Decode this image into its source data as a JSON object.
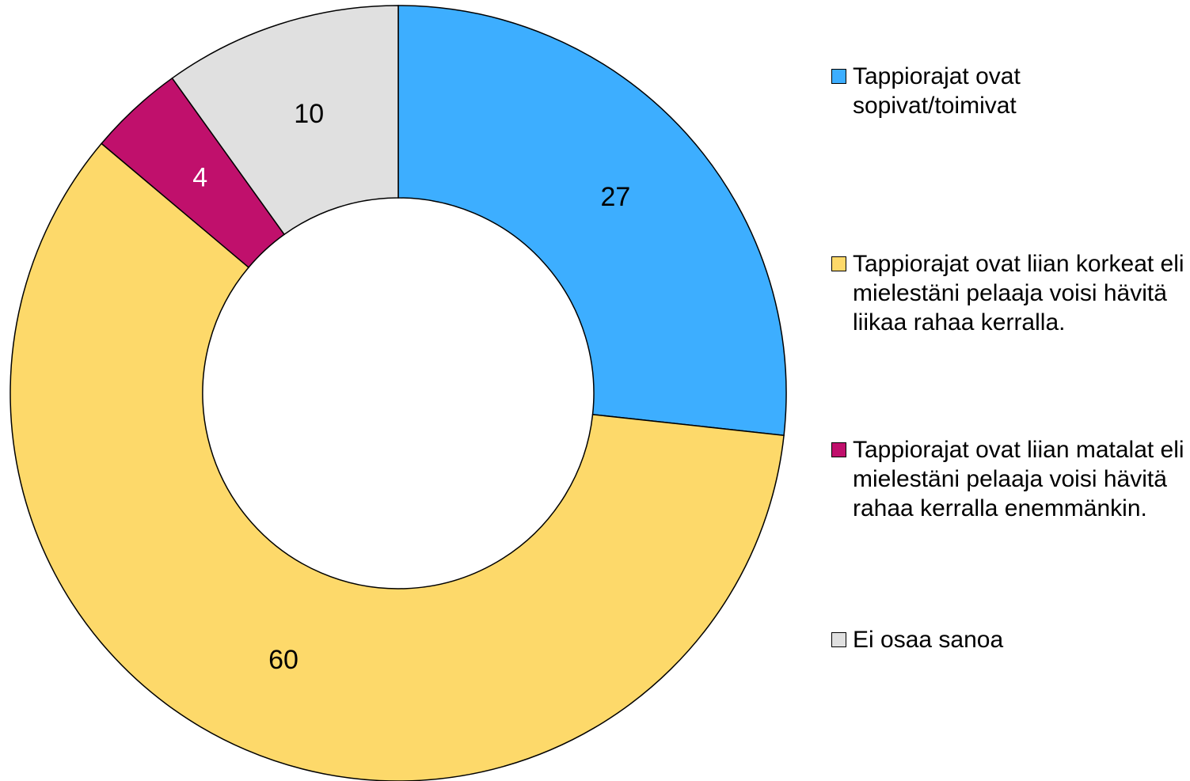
{
  "chart_data": {
    "type": "donut",
    "categories": [
      "Tappiorajat ovat sopivat/toimivat",
      "Tappiorajat ovat liian korkeat eli mielestäni pelaaja voisi hävitä liikaa rahaa kerralla.",
      "Tappiorajat ovat liian matalat eli mielestäni pelaaja voisi hävitä rahaa kerralla enemmänkin.",
      "Ei osaa sanoa"
    ],
    "values": [
      27,
      60,
      4,
      10
    ],
    "colors": [
      "#3daeff",
      "#fdd96a",
      "#c0106c",
      "#e0e0e0"
    ],
    "label_colors": [
      "#000000",
      "#000000",
      "#ffffff",
      "#000000"
    ],
    "legend": "right"
  }
}
